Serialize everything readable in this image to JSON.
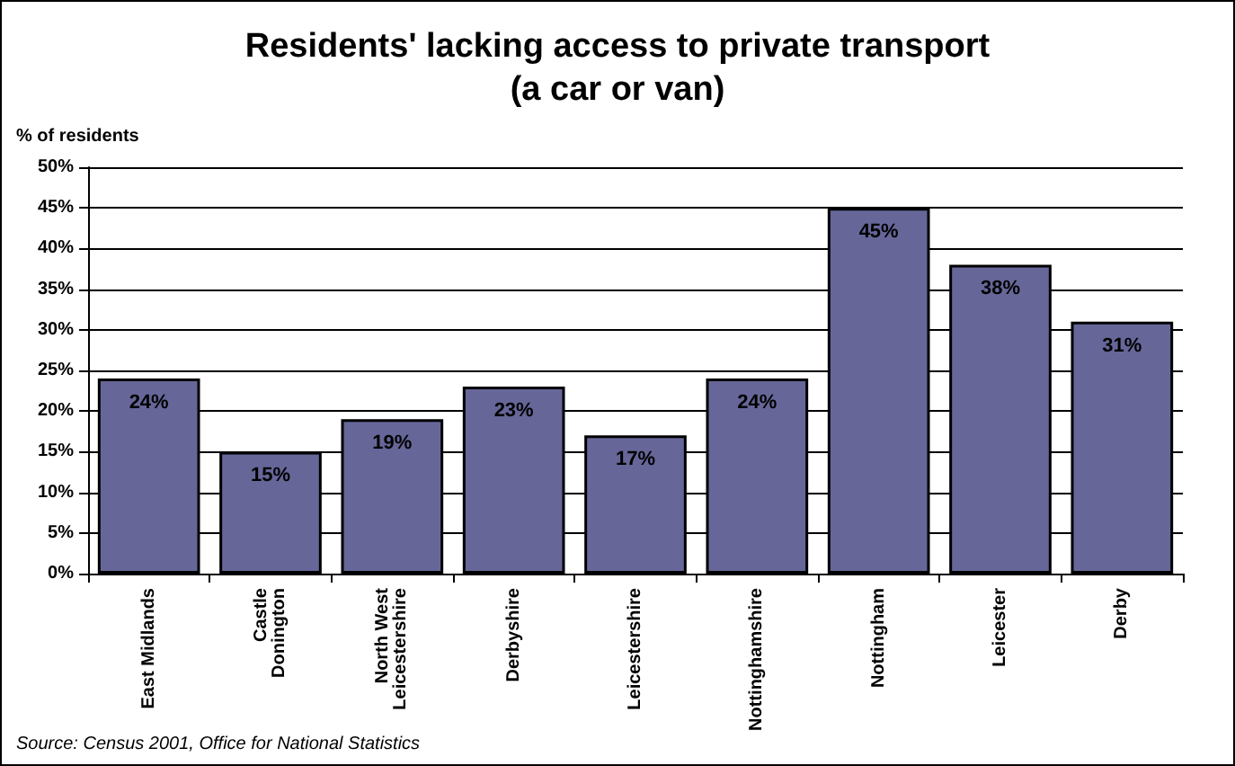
{
  "chart_data": {
    "type": "bar",
    "title": "Residents' lacking access to private transport\n(a car or van)",
    "ylabel": "% of residents",
    "categories": [
      "East Midlands",
      "Castle Donington",
      "North West Leicestershire",
      "Derbyshire",
      "Leicestershire",
      "Nottinghamshire",
      "Nottingham",
      "Leicester",
      "Derby"
    ],
    "values": [
      24,
      15,
      19,
      23,
      17,
      24,
      45,
      38,
      31
    ],
    "color": "#666699",
    "ylim": [
      0,
      50
    ],
    "yticks": [
      {
        "value": 0,
        "label": "0%"
      },
      {
        "value": 5,
        "label": "5%"
      },
      {
        "value": 10,
        "label": "10%"
      },
      {
        "value": 15,
        "label": "15%"
      },
      {
        "value": 20,
        "label": "20%"
      },
      {
        "value": 25,
        "label": "25%"
      },
      {
        "value": 30,
        "label": "30%"
      },
      {
        "value": 35,
        "label": "35%"
      },
      {
        "value": 40,
        "label": "40%"
      },
      {
        "value": 45,
        "label": "45%"
      },
      {
        "value": 50,
        "label": "50%"
      }
    ],
    "grid": "y",
    "value_labels": [
      "24%",
      "15%",
      "19%",
      "23%",
      "17%",
      "24%",
      "45%",
      "38%",
      "31%"
    ],
    "annotations": [
      "Source: Census 2001, Office for National Statistics"
    ]
  }
}
